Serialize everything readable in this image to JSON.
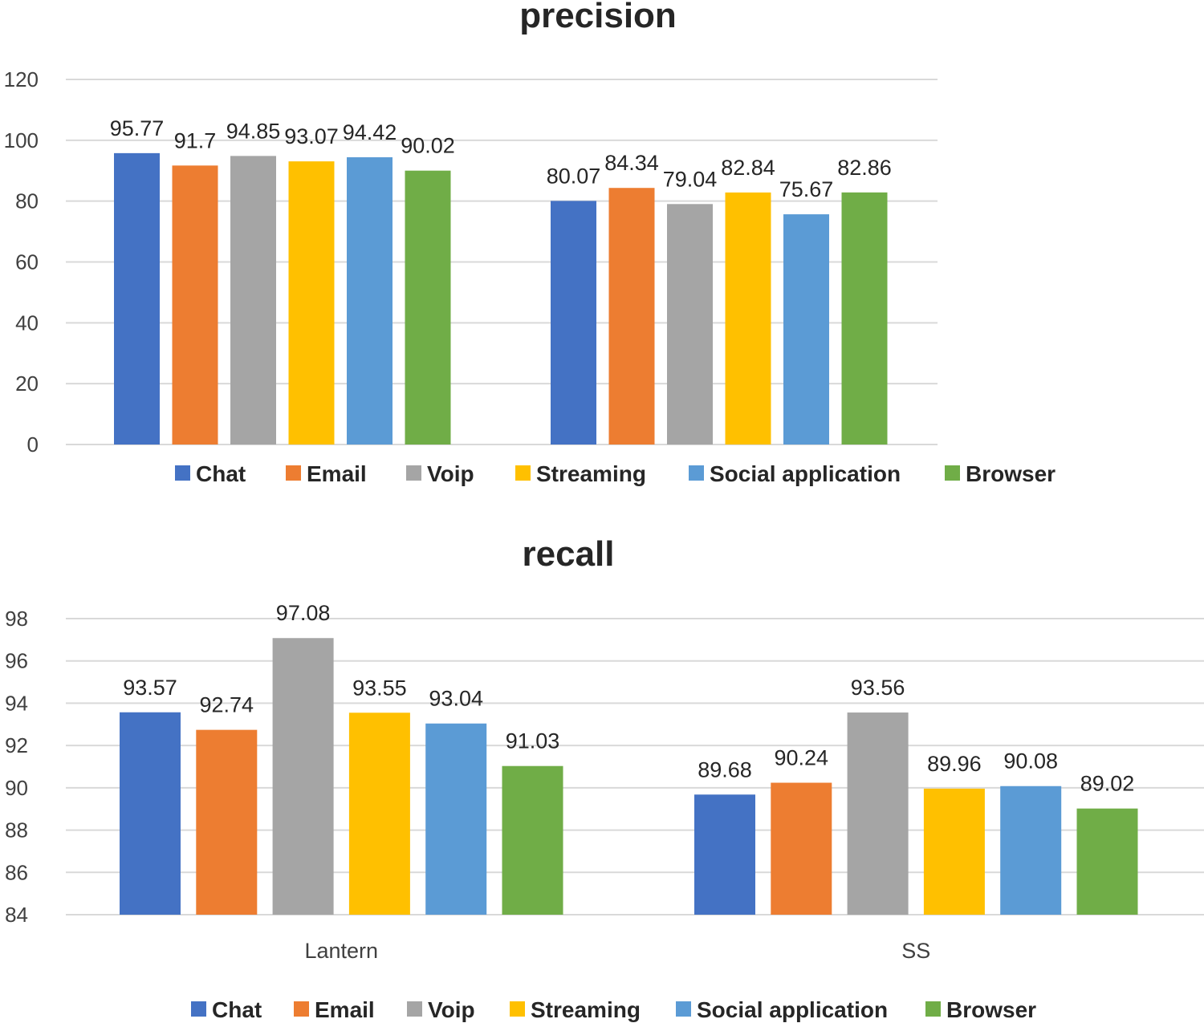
{
  "chart_data": [
    {
      "type": "bar",
      "title": "precision",
      "categories": [
        "",
        ""
      ],
      "series": [
        {
          "name": "Chat",
          "color": "#4472C4",
          "values": [
            95.77,
            80.07
          ]
        },
        {
          "name": "Email",
          "color": "#ED7D31",
          "values": [
            91.7,
            84.34
          ]
        },
        {
          "name": "Voip",
          "color": "#A5A5A5",
          "values": [
            94.85,
            79.04
          ]
        },
        {
          "name": "Streaming",
          "color": "#FFC000",
          "values": [
            93.07,
            82.84
          ]
        },
        {
          "name": "Social application",
          "color": "#5B9BD5",
          "values": [
            94.42,
            75.67
          ]
        },
        {
          "name": "Browser",
          "color": "#70AD47",
          "values": [
            90.02,
            82.86
          ]
        }
      ],
      "ylim": [
        0,
        120
      ],
      "yticks": [
        "0",
        "20",
        "40",
        "60",
        "80",
        "100",
        "120"
      ],
      "xlabel": "",
      "ylabel": "",
      "grid": true,
      "legend": "bottom"
    },
    {
      "type": "bar",
      "title": "recall",
      "categories": [
        "Lantern",
        "SS"
      ],
      "series": [
        {
          "name": "Chat",
          "color": "#4472C4",
          "values": [
            93.57,
            89.68
          ]
        },
        {
          "name": "Email",
          "color": "#ED7D31",
          "values": [
            92.74,
            90.24
          ]
        },
        {
          "name": "Voip",
          "color": "#A5A5A5",
          "values": [
            97.08,
            93.56
          ]
        },
        {
          "name": "Streaming",
          "color": "#FFC000",
          "values": [
            93.55,
            89.96
          ]
        },
        {
          "name": "Social application",
          "color": "#5B9BD5",
          "values": [
            93.04,
            90.08
          ]
        },
        {
          "name": "Browser",
          "color": "#70AD47",
          "values": [
            91.03,
            89.02
          ]
        }
      ],
      "ylim": [
        84,
        98
      ],
      "yticks": [
        "84",
        "86",
        "88",
        "90",
        "92",
        "94",
        "96",
        "98"
      ],
      "xlabel": "",
      "ylabel": "",
      "grid": true,
      "legend": "bottom"
    }
  ]
}
